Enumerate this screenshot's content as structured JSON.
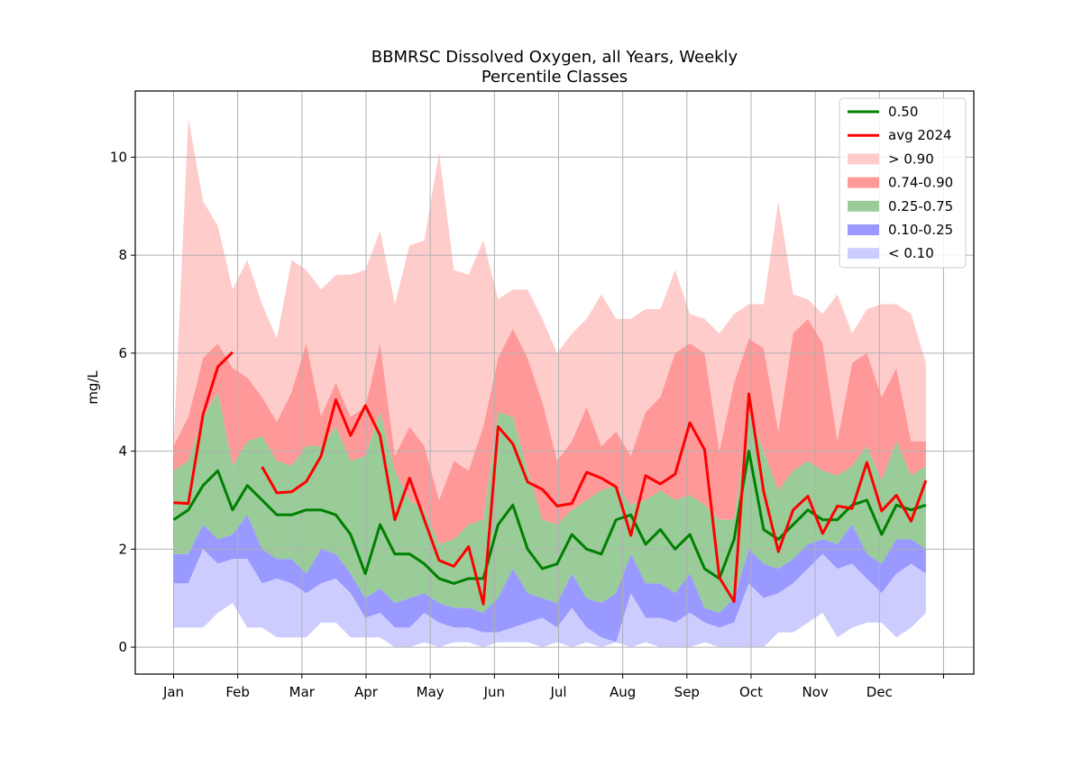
{
  "chart_data": {
    "type": "area",
    "title_lines": [
      "BBMRSC Dissolved Oxygen, all Years, Weekly",
      "Percentile Classes"
    ],
    "xlabel": "",
    "ylabel": "mg/L",
    "xlim": [
      0,
      52
    ],
    "ylim": [
      -0.55,
      11.35
    ],
    "y_ticks": [
      0,
      2,
      4,
      6,
      8,
      10
    ],
    "x_ticks": [
      {
        "pos": 0,
        "label": "Jan"
      },
      {
        "pos": 4.35,
        "label": "Feb"
      },
      {
        "pos": 8.7,
        "label": "Mar"
      },
      {
        "pos": 13.05,
        "label": "Apr"
      },
      {
        "pos": 17.4,
        "label": "May"
      },
      {
        "pos": 21.75,
        "label": "Jun"
      },
      {
        "pos": 26.1,
        "label": "Jul"
      },
      {
        "pos": 30.45,
        "label": "Aug"
      },
      {
        "pos": 34.8,
        "label": "Sep"
      },
      {
        "pos": 39.15,
        "label": "Oct"
      },
      {
        "pos": 43.5,
        "label": "Nov"
      },
      {
        "pos": 47.85,
        "label": "Dec"
      },
      {
        "pos": 52.2,
        "label": ""
      }
    ],
    "grid": true,
    "legend_position": "top-right",
    "bands": [
      {
        "name": "> 0.90",
        "color": "#ffcccc",
        "lower": [
          4.1,
          4.7,
          5.9,
          6.2,
          5.7,
          5.5,
          5.1,
          4.6,
          5.2,
          6.2,
          4.7,
          5.4,
          4.7,
          4.9,
          6.2,
          3.9,
          4.5,
          4.1,
          3.0,
          3.8,
          3.6,
          4.5,
          5.9,
          6.5,
          5.9,
          5.0,
          3.8,
          4.2,
          4.9,
          4.1,
          4.4,
          3.9,
          4.8,
          5.1,
          6.0,
          6.2,
          6.0,
          4.0,
          5.4,
          6.3,
          6.1,
          4.4,
          6.4,
          6.7,
          6.2,
          4.2,
          5.8,
          6.0,
          5.1,
          5.7,
          4.2,
          4.2
        ],
        "upper": [
          4.1,
          10.8,
          9.1,
          8.6,
          7.3,
          7.9,
          7.0,
          6.3,
          7.9,
          7.7,
          7.3,
          7.6,
          7.6,
          7.7,
          8.5,
          7.0,
          8.2,
          8.3,
          10.1,
          7.7,
          7.6,
          8.3,
          7.1,
          7.3,
          7.3,
          6.7,
          6.0,
          6.4,
          6.7,
          7.2,
          6.7,
          6.7,
          6.9,
          6.9,
          7.7,
          6.8,
          6.7,
          6.4,
          6.8,
          7.0,
          7.0,
          9.1,
          7.2,
          7.1,
          6.8,
          7.2,
          6.4,
          6.9,
          7.0,
          7.0,
          6.8,
          5.8
        ]
      },
      {
        "name": "0.74-0.90",
        "color": "#ff9999",
        "lower": [
          3.6,
          3.8,
          4.7,
          5.2,
          3.7,
          4.2,
          4.3,
          3.8,
          3.7,
          4.1,
          4.1,
          4.5,
          3.8,
          3.9,
          4.8,
          3.6,
          3.0,
          2.8,
          2.1,
          2.2,
          2.5,
          2.6,
          4.8,
          4.7,
          3.6,
          2.6,
          2.5,
          2.8,
          3.0,
          3.2,
          3.3,
          2.9,
          3.0,
          3.2,
          3.0,
          3.1,
          2.9,
          2.6,
          2.6,
          4.8,
          4.0,
          3.2,
          3.6,
          3.8,
          3.6,
          3.5,
          3.7,
          4.1,
          3.4,
          4.2,
          3.5,
          3.7
        ],
        "upper": [
          4.1,
          4.7,
          5.9,
          6.2,
          5.7,
          5.5,
          5.1,
          4.6,
          5.2,
          6.2,
          4.7,
          5.4,
          4.7,
          4.9,
          6.2,
          3.9,
          4.5,
          4.1,
          3.0,
          3.8,
          3.6,
          4.5,
          5.9,
          6.5,
          5.9,
          5.0,
          3.8,
          4.2,
          4.9,
          4.1,
          4.4,
          3.9,
          4.8,
          5.1,
          6.0,
          6.2,
          6.0,
          4.0,
          5.4,
          6.3,
          6.1,
          4.4,
          6.4,
          6.7,
          6.2,
          4.2,
          5.8,
          6.0,
          5.1,
          5.7,
          4.2,
          4.2
        ]
      },
      {
        "name": "0.25-0.75",
        "color": "#99cc99",
        "lower": [
          1.9,
          1.9,
          2.5,
          2.2,
          2.3,
          2.7,
          2.0,
          1.8,
          1.8,
          1.5,
          2.0,
          1.9,
          1.5,
          1.0,
          1.2,
          0.9,
          1.0,
          1.1,
          0.9,
          0.8,
          0.8,
          0.7,
          1.0,
          1.6,
          1.1,
          1.0,
          0.9,
          1.5,
          1.0,
          0.9,
          1.1,
          1.9,
          1.3,
          1.3,
          1.1,
          1.5,
          0.8,
          0.7,
          1.0,
          2.0,
          1.7,
          1.6,
          1.8,
          2.1,
          2.2,
          2.1,
          2.5,
          1.9,
          1.7,
          2.2,
          2.2,
          2.0
        ],
        "upper": [
          3.6,
          3.8,
          4.7,
          5.2,
          3.7,
          4.2,
          4.3,
          3.8,
          3.7,
          4.1,
          4.1,
          4.5,
          3.8,
          3.9,
          4.8,
          3.6,
          3.0,
          2.8,
          2.1,
          2.2,
          2.5,
          2.6,
          4.8,
          4.7,
          3.6,
          2.6,
          2.5,
          2.8,
          3.0,
          3.2,
          3.3,
          2.9,
          3.0,
          3.2,
          3.0,
          3.1,
          2.9,
          2.6,
          2.6,
          4.8,
          4.0,
          3.2,
          3.6,
          3.8,
          3.6,
          3.5,
          3.7,
          4.1,
          3.4,
          4.2,
          3.5,
          3.7
        ]
      },
      {
        "name": "0.10-0.25",
        "color": "#9999ff",
        "lower": [
          1.3,
          1.3,
          2.0,
          1.7,
          1.8,
          1.8,
          1.3,
          1.4,
          1.3,
          1.1,
          1.3,
          1.4,
          1.1,
          0.6,
          0.7,
          0.4,
          0.4,
          0.7,
          0.5,
          0.4,
          0.4,
          0.3,
          0.3,
          0.4,
          0.5,
          0.6,
          0.4,
          0.8,
          0.4,
          0.2,
          0.1,
          1.1,
          0.6,
          0.6,
          0.5,
          0.7,
          0.5,
          0.4,
          0.5,
          1.3,
          1.0,
          1.1,
          1.3,
          1.6,
          1.9,
          1.6,
          1.7,
          1.4,
          1.1,
          1.5,
          1.7,
          1.5
        ],
        "upper": [
          1.9,
          1.9,
          2.5,
          2.2,
          2.3,
          2.7,
          2.0,
          1.8,
          1.8,
          1.5,
          2.0,
          1.9,
          1.5,
          1.0,
          1.2,
          0.9,
          1.0,
          1.1,
          0.9,
          0.8,
          0.8,
          0.7,
          1.0,
          1.6,
          1.1,
          1.0,
          0.9,
          1.5,
          1.0,
          0.9,
          1.1,
          1.9,
          1.3,
          1.3,
          1.1,
          1.5,
          0.8,
          0.7,
          1.0,
          2.0,
          1.7,
          1.6,
          1.8,
          2.1,
          2.2,
          2.1,
          2.5,
          1.9,
          1.7,
          2.2,
          2.2,
          2.0
        ]
      },
      {
        "name": "< 0.10",
        "color": "#ccccff",
        "lower": [
          0.4,
          0.4,
          0.4,
          0.7,
          0.9,
          0.4,
          0.4,
          0.2,
          0.2,
          0.2,
          0.5,
          0.5,
          0.2,
          0.2,
          0.2,
          0.0,
          0.0,
          0.1,
          0.0,
          0.1,
          0.1,
          0.0,
          0.1,
          0.1,
          0.1,
          0.0,
          0.1,
          0.0,
          0.1,
          0.0,
          0.1,
          0.0,
          0.1,
          0.0,
          0.0,
          0.0,
          0.1,
          0.0,
          0.0,
          0.0,
          0.0,
          0.3,
          0.3,
          0.5,
          0.7,
          0.2,
          0.4,
          0.5,
          0.5,
          0.2,
          0.4,
          0.7
        ],
        "upper": [
          1.3,
          1.3,
          2.0,
          1.7,
          1.8,
          1.8,
          1.3,
          1.4,
          1.3,
          1.1,
          1.3,
          1.4,
          1.1,
          0.6,
          0.7,
          0.4,
          0.4,
          0.7,
          0.5,
          0.4,
          0.4,
          0.3,
          0.3,
          0.4,
          0.5,
          0.6,
          0.4,
          0.8,
          0.4,
          0.2,
          0.1,
          1.1,
          0.6,
          0.6,
          0.5,
          0.7,
          0.5,
          0.4,
          0.5,
          1.3,
          1.0,
          1.1,
          1.3,
          1.6,
          1.9,
          1.6,
          1.7,
          1.4,
          1.1,
          1.5,
          1.7,
          1.5
        ]
      }
    ],
    "lines": [
      {
        "name": "0.50",
        "color": "#008000",
        "values": [
          2.6,
          2.8,
          3.3,
          3.6,
          2.8,
          3.3,
          3.0,
          2.7,
          2.7,
          2.8,
          2.8,
          2.7,
          2.3,
          1.5,
          2.5,
          1.9,
          1.9,
          1.7,
          1.4,
          1.3,
          1.4,
          1.4,
          2.5,
          2.9,
          2.0,
          1.6,
          1.7,
          2.3,
          2.0,
          1.9,
          2.6,
          2.7,
          2.1,
          2.4,
          2.0,
          2.3,
          1.6,
          1.4,
          2.2,
          4.0,
          2.4,
          2.2,
          2.5,
          2.8,
          2.6,
          2.6,
          2.9,
          3.0,
          2.3,
          2.9,
          2.8,
          2.9
        ]
      },
      {
        "name": "avg 2024",
        "color": "#ff0000",
        "values": [
          2.95,
          2.93,
          4.75,
          5.72,
          6.02,
          null,
          3.68,
          3.15,
          3.17,
          3.38,
          3.9,
          5.05,
          4.32,
          4.93,
          4.32,
          2.6,
          3.45,
          2.6,
          1.77,
          1.65,
          2.05,
          0.88,
          4.5,
          4.15,
          3.37,
          3.22,
          2.88,
          2.93,
          3.57,
          3.45,
          3.27,
          2.28,
          3.5,
          3.33,
          3.53,
          4.58,
          4.03,
          1.42,
          0.93,
          5.17,
          3.18,
          1.95,
          2.8,
          3.08,
          2.32,
          2.88,
          2.83,
          3.77,
          2.78,
          3.1,
          2.57,
          3.4
        ]
      }
    ]
  }
}
